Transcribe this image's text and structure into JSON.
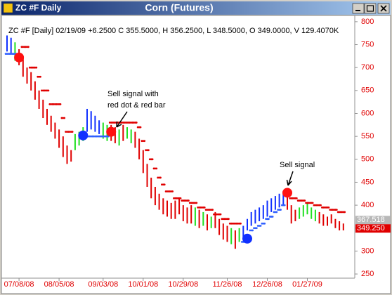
{
  "chart_data": {
    "type": "ohlc",
    "window_title": "ZC #F Daily",
    "title": "Corn (Futures)",
    "subtitle": "ZC #F [Daily] 02/19/09 +6.2500 C 355.5000, H 356.2500, L 348.5000, O 349.0000, V 129.4070K",
    "categories": [
      null,
      null,
      null,
      "07/08/08",
      null,
      null,
      null,
      null,
      null,
      null,
      null,
      null,
      null,
      "08/05/08",
      null,
      null,
      null,
      null,
      null,
      null,
      null,
      null,
      null,
      null,
      "09/03/08",
      null,
      null,
      null,
      null,
      null,
      null,
      null,
      null,
      null,
      "10/01/08",
      null,
      null,
      null,
      null,
      null,
      null,
      null,
      null,
      null,
      "10/29/08",
      null,
      null,
      null,
      null,
      null,
      null,
      null,
      null,
      null,
      null,
      "11/26/08",
      null,
      null,
      null,
      null,
      null,
      null,
      null,
      null,
      null,
      "12/26/08",
      null,
      null,
      null,
      null,
      null,
      null,
      null,
      null,
      null,
      "01/27/09",
      null,
      null,
      null,
      null,
      null,
      null,
      null,
      null,
      null
    ],
    "bars": {
      "high": [
        770,
        765,
        755,
        740,
        720,
        700,
        690,
        670,
        650,
        630,
        610,
        595,
        580,
        565,
        550,
        530,
        520,
        555,
        560,
        570,
        610,
        605,
        595,
        585,
        580,
        575,
        575,
        570,
        565,
        575,
        570,
        565,
        560,
        545,
        520,
        490,
        460,
        440,
        425,
        415,
        410,
        405,
        410,
        415,
        400,
        395,
        400,
        395,
        390,
        385,
        380,
        375,
        385,
        370,
        360,
        355,
        350,
        345,
        350,
        355,
        370,
        385,
        390,
        395,
        400,
        410,
        415,
        420,
        425,
        430,
        430,
        400,
        390,
        395,
        400,
        405,
        395,
        390,
        385,
        380,
        375,
        380,
        370,
        365,
        360
      ],
      "low": [
        735,
        730,
        715,
        705,
        680,
        665,
        650,
        630,
        610,
        590,
        575,
        560,
        545,
        525,
        505,
        490,
        495,
        520,
        530,
        540,
        560,
        565,
        560,
        555,
        545,
        540,
        540,
        535,
        530,
        540,
        545,
        535,
        525,
        500,
        470,
        440,
        415,
        400,
        390,
        380,
        375,
        370,
        370,
        380,
        365,
        360,
        360,
        355,
        350,
        355,
        345,
        350,
        350,
        335,
        325,
        320,
        315,
        305,
        320,
        330,
        345,
        355,
        360,
        365,
        370,
        375,
        385,
        390,
        395,
        400,
        390,
        360,
        365,
        370,
        375,
        380,
        370,
        365,
        360,
        355,
        355,
        360,
        350,
        345,
        345
      ],
      "colors": [
        "#1030ff",
        "#1030ff",
        "#20e020",
        "#e00000",
        "#e00000",
        "#e00000",
        "#e00000",
        "#e00000",
        "#e00000",
        "#e00000",
        "#e00000",
        "#e00000",
        "#e00000",
        "#e00000",
        "#e00000",
        "#e00000",
        "#e00000",
        "#20e020",
        "#20e020",
        "#20e020",
        "#1030ff",
        "#1030ff",
        "#1030ff",
        "#1030ff",
        "#20e020",
        "#20e020",
        "#e00000",
        "#e00000",
        "#20e020",
        "#e00000",
        "#20e020",
        "#20e020",
        "#e00000",
        "#e00000",
        "#e00000",
        "#e00000",
        "#e00000",
        "#e00000",
        "#e00000",
        "#e00000",
        "#e00000",
        "#e00000",
        "#e00000",
        "#e00000",
        "#e00000",
        "#e00000",
        "#e00000",
        "#20e020",
        "#e00000",
        "#20e020",
        "#e00000",
        "#20e020",
        "#e00000",
        "#e00000",
        "#e00000",
        "#e00000",
        "#20e020",
        "#e00000",
        "#20e020",
        "#1030ff",
        "#1030ff",
        "#1030ff",
        "#1030ff",
        "#1030ff",
        "#1030ff",
        "#1030ff",
        "#1030ff",
        "#1030ff",
        "#1030ff",
        "#1030ff",
        "#e00000",
        "#e00000",
        "#e00000",
        "#20e020",
        "#20e020",
        "#20e020",
        "#20e020",
        "#20e020",
        "#e00000",
        "#e00000",
        "#e00000",
        "#e00000",
        "#e00000",
        "#e00000",
        "#e00000"
      ]
    },
    "stops": [
      {
        "color": "#e00000",
        "values": [
          null,
          null,
          null,
          null,
          745,
          745,
          700,
          700,
          680,
          650,
          650,
          620,
          620,
          620,
          590,
          560,
          560,
          null,
          null,
          null,
          null,
          null,
          null,
          null,
          null,
          null,
          580,
          580,
          580,
          580,
          580,
          580,
          580,
          570,
          540,
          520,
          500,
          480,
          460,
          445,
          430,
          430,
          415,
          415,
          410,
          410,
          405,
          405,
          395,
          395,
          390,
          390,
          380,
          380,
          370,
          370,
          360,
          360,
          360,
          null,
          null,
          null,
          null,
          null,
          null,
          null,
          null,
          null,
          null,
          null,
          420,
          415,
          415,
          410,
          410,
          405,
          405,
          400,
          400,
          395,
          395,
          390,
          390,
          385,
          385
        ]
      },
      {
        "color": "#3060ff",
        "values": [
          730,
          730,
          730,
          null,
          null,
          null,
          null,
          null,
          null,
          null,
          null,
          null,
          null,
          null,
          null,
          null,
          null,
          null,
          null,
          550,
          550,
          550,
          550,
          550,
          550,
          550,
          null,
          null,
          null,
          null,
          null,
          null,
          null,
          null,
          null,
          null,
          null,
          null,
          null,
          null,
          null,
          null,
          null,
          null,
          null,
          null,
          null,
          null,
          null,
          null,
          null,
          null,
          null,
          null,
          null,
          null,
          null,
          null,
          null,
          320,
          330,
          345,
          350,
          355,
          360,
          370,
          375,
          385,
          390,
          400,
          null,
          null,
          null,
          null,
          null,
          null,
          null,
          null,
          null,
          null,
          null,
          null,
          null,
          null,
          null
        ]
      }
    ],
    "signals": [
      {
        "color": "#ff1010",
        "values": [
          null,
          null,
          null,
          722,
          null,
          null,
          null,
          null,
          null,
          null,
          null,
          null,
          null,
          null,
          null,
          null,
          null,
          null,
          null,
          null,
          null,
          null,
          null,
          null,
          null,
          null,
          560,
          null,
          null,
          null,
          null,
          null,
          null,
          null,
          null,
          null,
          null,
          null,
          null,
          null,
          null,
          null,
          null,
          null,
          null,
          null,
          null,
          null,
          null,
          null,
          null,
          null,
          null,
          null,
          null,
          null,
          null,
          null,
          null,
          null,
          null,
          null,
          null,
          null,
          null,
          null,
          null,
          null,
          null,
          null,
          427,
          null,
          null,
          null,
          null,
          null,
          null,
          null,
          null,
          null,
          null,
          null,
          null,
          null,
          null
        ]
      },
      {
        "color": "#1030ff",
        "values": [
          null,
          null,
          null,
          null,
          null,
          null,
          null,
          null,
          null,
          null,
          null,
          null,
          null,
          null,
          null,
          null,
          null,
          null,
          null,
          552,
          null,
          null,
          null,
          null,
          null,
          null,
          null,
          null,
          null,
          null,
          null,
          null,
          null,
          null,
          null,
          null,
          null,
          null,
          null,
          null,
          null,
          null,
          null,
          null,
          null,
          null,
          null,
          null,
          null,
          null,
          null,
          null,
          null,
          null,
          null,
          null,
          null,
          null,
          null,
          null,
          327,
          null,
          null,
          null,
          null,
          null,
          null,
          null,
          null,
          null,
          null,
          null,
          null,
          null,
          null,
          null,
          null,
          null,
          null,
          null,
          null,
          null,
          null,
          null,
          null
        ]
      }
    ],
    "annotations": [
      [
        "Sell signal with",
        "red dot & red bar"
      ],
      [
        "Sell signal"
      ]
    ],
    "last_labels": [
      {
        "value": 367.518,
        "label": "367.518",
        "color": "#b8b8b8"
      },
      {
        "value": 349.25,
        "label": "349.250",
        "color": "#e00000"
      }
    ],
    "ylim": [
      244,
      809
    ],
    "yticks": [
      250,
      300,
      350,
      400,
      450,
      500,
      550,
      600,
      650,
      700,
      750,
      800
    ],
    "axis_color": "#e00000"
  }
}
